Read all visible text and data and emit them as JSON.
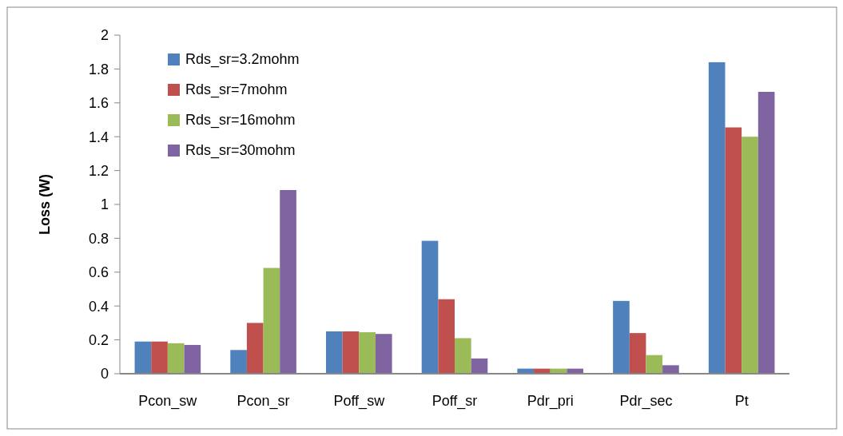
{
  "chart_data": {
    "type": "bar",
    "ylabel": "Loss (W)",
    "categories": [
      "Pcon_sw",
      "Pcon_sr",
      "Poff_sw",
      "Poff_sr",
      "Pdr_pri",
      "Pdr_sec",
      "Pt"
    ],
    "series": [
      {
        "name": "Rds_sr=3.2mohm",
        "color": "#4f81bd",
        "values": [
          0.19,
          0.14,
          0.25,
          0.785,
          0.03,
          0.43,
          1.84
        ]
      },
      {
        "name": "Rds_sr=7mohm",
        "color": "#c0504d",
        "values": [
          0.19,
          0.3,
          0.25,
          0.44,
          0.03,
          0.24,
          1.455
        ]
      },
      {
        "name": "Rds_sr=16mohm",
        "color": "#9bbb59",
        "values": [
          0.18,
          0.625,
          0.245,
          0.21,
          0.03,
          0.11,
          1.4
        ]
      },
      {
        "name": "Rds_sr=30mohm",
        "color": "#8064a2",
        "values": [
          0.17,
          1.085,
          0.235,
          0.09,
          0.03,
          0.05,
          1.665
        ]
      }
    ],
    "ylim": [
      0,
      2
    ],
    "yticks": [
      0,
      0.2,
      0.4,
      0.6,
      0.8,
      1,
      1.2,
      1.4,
      1.6,
      1.8,
      2
    ],
    "grid": false,
    "legend": "top left"
  }
}
